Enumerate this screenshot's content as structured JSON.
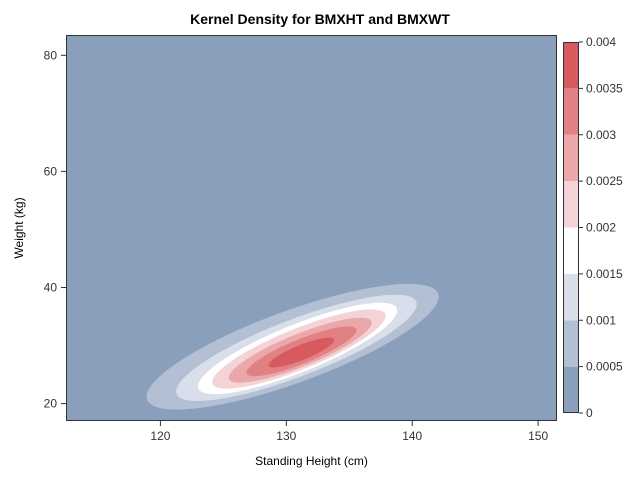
{
  "chart_data": {
    "type": "contour",
    "title": "Kernel Density for BMXHT and BMXWT",
    "xlabel": "Standing Height (cm)",
    "ylabel": "Weight (kg)",
    "xlim": [
      112.5,
      151.5
    ],
    "ylim": [
      17,
      83.5
    ],
    "x_ticks": [
      120,
      130,
      140,
      150
    ],
    "y_ticks": [
      20,
      40,
      60,
      80
    ],
    "density_peak": {
      "x": 131,
      "y": 28.8
    },
    "contour_levels": [
      {
        "level": 0.0005,
        "center": [
          130.5,
          29.8
        ],
        "rx": 12.3,
        "ry": 6.2,
        "rotate": -20
      },
      {
        "level": 0.001,
        "center": [
          130.8,
          29.6
        ],
        "rx": 10.2,
        "ry": 4.9,
        "rotate": -21
      },
      {
        "level": 0.0015,
        "center": [
          130.9,
          29.5
        ],
        "rx": 8.5,
        "ry": 4.1,
        "rotate": -22
      },
      {
        "level": 0.002,
        "center": [
          131.0,
          29.4
        ],
        "rx": 7.4,
        "ry": 3.5,
        "rotate": -22
      },
      {
        "level": 0.0025,
        "center": [
          131.1,
          29.2
        ],
        "rx": 6.1,
        "ry": 2.8,
        "rotate": -22
      },
      {
        "level": 0.003,
        "center": [
          131.2,
          29.0
        ],
        "rx": 4.7,
        "ry": 2.1,
        "rotate": -22
      },
      {
        "level": 0.0035,
        "center": [
          131.2,
          28.8
        ],
        "rx": 2.8,
        "ry": 1.3,
        "rotate": -22
      }
    ],
    "colorbar": {
      "min": 0,
      "max": 0.004,
      "tick_labels": [
        "0",
        "0.0005",
        "0.001",
        "0.0015",
        "0.002",
        "0.0025",
        "0.003",
        "0.0035",
        "0.004"
      ],
      "band_colors": [
        "#8a9fbc",
        "#b3c0d3",
        "#d9dfea",
        "#ffffff",
        "#f3d3d5",
        "#eaa8ab",
        "#e18184",
        "#d65a5e"
      ]
    },
    "colors": {
      "background": "#8a9fbc",
      "text": "#333333",
      "frame": "#333333"
    }
  }
}
